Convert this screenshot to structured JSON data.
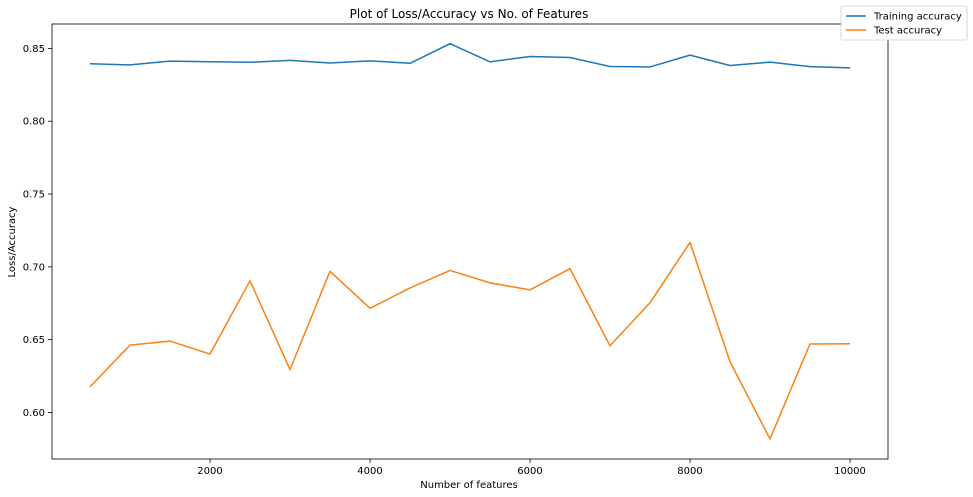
{
  "chart_data": {
    "type": "line",
    "title": "Plot of Loss/Accuracy vs No. of Features",
    "xlabel": "Number of features",
    "ylabel": "Loss/Accuracy",
    "x": [
      500,
      1000,
      1500,
      2000,
      2500,
      3000,
      3500,
      4000,
      4500,
      5000,
      5500,
      6000,
      6500,
      7000,
      7500,
      8000,
      8500,
      9000,
      9500,
      10000
    ],
    "series": [
      {
        "name": "Training accuracy",
        "color": "#1f77b4",
        "values": [
          0.8395,
          0.8387,
          0.8413,
          0.8409,
          0.8405,
          0.8418,
          0.84,
          0.8415,
          0.8398,
          0.8533,
          0.8408,
          0.8445,
          0.8438,
          0.8376,
          0.8373,
          0.8454,
          0.8383,
          0.8406,
          0.8375,
          0.8367
        ]
      },
      {
        "name": "Test accuracy",
        "color": "#ff7f0e",
        "values": [
          0.6176,
          0.6462,
          0.649,
          0.6401,
          0.6904,
          0.6294,
          0.6969,
          0.6715,
          0.6855,
          0.6975,
          0.689,
          0.6842,
          0.6987,
          0.6458,
          0.6753,
          0.7168,
          0.6348,
          0.5818,
          0.647,
          0.6472
        ]
      }
    ],
    "xlim": [
      25,
      10475
    ],
    "ylim": [
      0.568,
      0.8668
    ],
    "xticks": [
      2000,
      4000,
      6000,
      8000,
      10000
    ],
    "yticks": [
      0.6,
      0.65,
      0.7,
      0.75,
      0.8,
      0.85
    ],
    "grid": false,
    "legend_position": "top-right"
  }
}
